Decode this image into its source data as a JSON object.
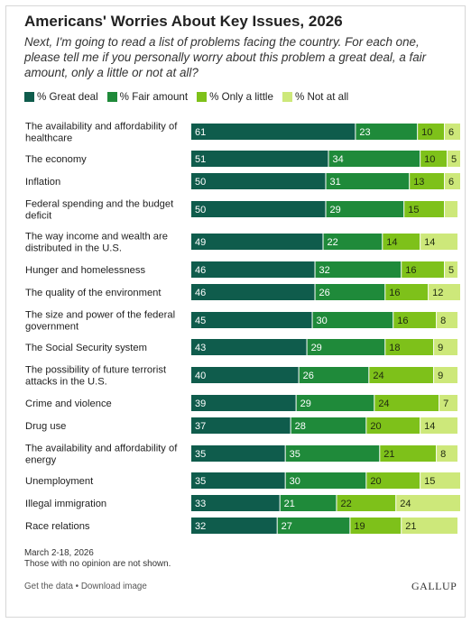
{
  "chart_data": {
    "type": "bar",
    "orientation": "horizontal",
    "stacked": true,
    "title": "Americans' Worries About Key Issues, 2026",
    "subtitle": "Next, I'm going to read a list of problems facing the country. For each one, please tell me if you personally worry about this problem a great deal, a fair amount, only a little or not at all?",
    "legend_position": "top-left",
    "categories": [
      [
        "The availability and affordability of",
        "healthcare"
      ],
      [
        "The economy"
      ],
      [
        "Inflation"
      ],
      [
        "Federal spending and the budget",
        "deficit"
      ],
      [
        "The way income and wealth are",
        "distributed in the U.S."
      ],
      [
        "Hunger and homelessness"
      ],
      [
        "The quality of the environment"
      ],
      [
        "The size and power of the federal",
        "government"
      ],
      [
        "The Social Security system"
      ],
      [
        "The possibility of future terrorist",
        "attacks in the U.S."
      ],
      [
        "Crime and violence"
      ],
      [
        "Drug use"
      ],
      [
        "The availability and affordability of",
        "energy"
      ],
      [
        "Unemployment"
      ],
      [
        "Illegal immigration"
      ],
      [
        "Race relations"
      ]
    ],
    "series": [
      {
        "name": "% Great deal",
        "color": "#0f5c4c",
        "values": [
          61,
          51,
          50,
          50,
          49,
          46,
          46,
          45,
          43,
          40,
          39,
          37,
          35,
          35,
          33,
          32
        ],
        "labels": [
          "61",
          "51",
          "50",
          "50",
          "49",
          "46",
          "46",
          "45",
          "43",
          "40",
          "39",
          "37",
          "35",
          "35",
          "33",
          "32"
        ]
      },
      {
        "name": "% Fair amount",
        "color": "#1f8a3a",
        "values": [
          23,
          34,
          31,
          29,
          22,
          32,
          26,
          30,
          29,
          26,
          29,
          28,
          35,
          30,
          21,
          27
        ],
        "labels": [
          "23",
          "34",
          "31",
          "29",
          "22",
          "32",
          "26",
          "30",
          "29",
          "26",
          "29",
          "28",
          "35",
          "30",
          "21",
          "27"
        ]
      },
      {
        "name": "% Only a little",
        "color": "#7ec11a",
        "values": [
          10,
          10,
          13,
          15,
          14,
          16,
          16,
          16,
          18,
          24,
          24,
          20,
          21,
          20,
          22,
          19
        ],
        "labels": [
          "10",
          "10",
          "13",
          "15",
          "14",
          "16",
          "16",
          "16",
          "18",
          "24",
          "24",
          "20",
          "21",
          "20",
          "22",
          "19"
        ]
      },
      {
        "name": "% Not at all",
        "color": "#cde87a",
        "values": [
          6,
          5,
          6,
          5,
          14,
          5,
          12,
          8,
          9,
          9,
          7,
          14,
          8,
          15,
          24,
          21
        ],
        "labels": [
          "6",
          "5",
          "6",
          "",
          "14",
          "5",
          "12",
          "8",
          "9",
          "9",
          "7",
          "14",
          "8",
          "15",
          "24",
          "21"
        ]
      }
    ],
    "xlim": [
      0,
      100
    ],
    "grid": false
  },
  "footer": {
    "note_date": "March 2-18, 2026",
    "note_text": "Those with no opinion are not shown.",
    "link_get_data": "Get the data",
    "separator": "•",
    "link_download": "Download image",
    "brand": "GALLUP"
  }
}
